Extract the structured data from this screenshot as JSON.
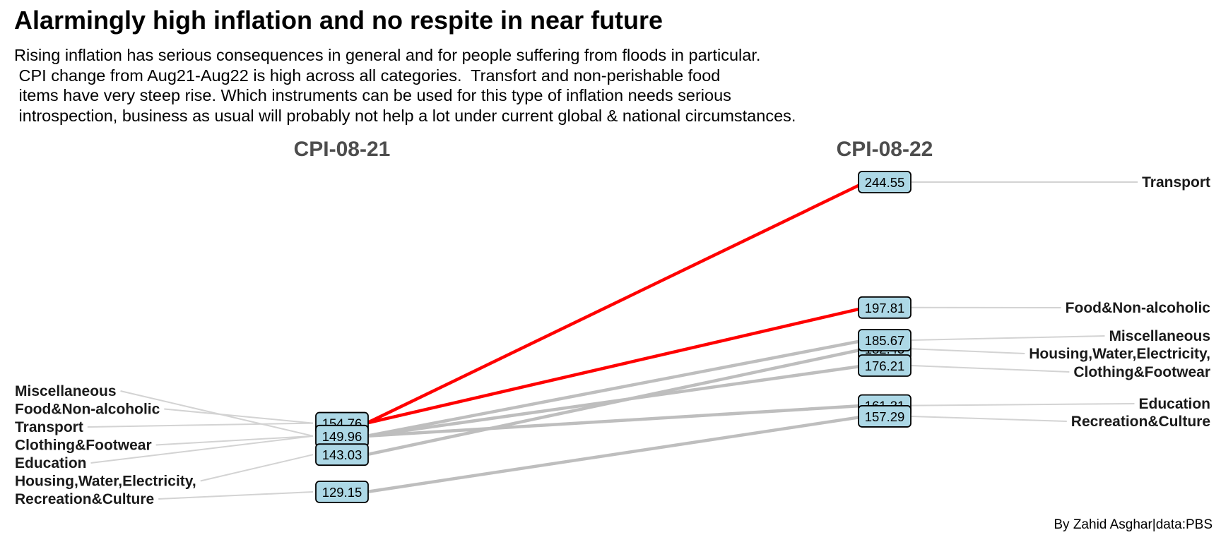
{
  "chart_data": {
    "type": "line",
    "title": "Alarmingly high inflation and no respite in near future",
    "subtitle_lines": [
      "Rising inflation has serious consequences in general and for people suffering from floods in particular.",
      " CPI change from Aug21-Aug22 is high across all categories.  Transfort and non-perishable food",
      " items have very steep rise. Which instruments can be used for this type of inflation needs serious",
      " introspection, business as usual will probably not help a lot under current global & national circumstances."
    ],
    "caption": "By Zahid Asghar|data:PBS",
    "x": [
      "CPI-08-21",
      "CPI-08-22"
    ],
    "ylim": [
      125,
      250
    ],
    "grid": false,
    "highlight_color": "#ff0000",
    "base_color": "#bebebe",
    "label_fill": "#add8e6",
    "left_label_order": [
      "Miscellaneous",
      "Food&Non-alcoholic",
      "Transport",
      "Clothing&Footwear",
      "Education",
      "Housing,Water,Electricity,",
      "Recreation&Culture"
    ],
    "right_label_order": [
      "Transport",
      "Food&Non-alcoholic",
      "Miscellaneous",
      "Housing,Water,Electricity,",
      "Clothing&Footwear",
      "Education",
      "Recreation&Culture"
    ],
    "series": [
      {
        "name": "Transport",
        "values": [
          154.76,
          244.55
        ],
        "highlight": true
      },
      {
        "name": "Food&Non-alcoholic",
        "values": [
          154.76,
          197.81
        ],
        "highlight": true
      },
      {
        "name": "Miscellaneous",
        "values": [
          149.96,
          185.67
        ],
        "highlight": false
      },
      {
        "name": "Housing,Water,Electricity,",
        "values": [
          143.03,
          182.45
        ],
        "highlight": false
      },
      {
        "name": "Clothing&Footwear",
        "values": [
          149.96,
          176.21
        ],
        "highlight": false
      },
      {
        "name": "Education",
        "values": [
          149.96,
          161.31
        ],
        "highlight": false
      },
      {
        "name": "Recreation&Culture",
        "values": [
          129.15,
          157.29
        ],
        "highlight": false
      }
    ],
    "value_labels": [
      {
        "column": 0,
        "value": 154.76,
        "text": "154.76"
      },
      {
        "column": 0,
        "value": 149.96,
        "text": "149.96"
      },
      {
        "column": 0,
        "value": 143.03,
        "text": "143.03"
      },
      {
        "column": 0,
        "value": 129.15,
        "text": "129.15"
      },
      {
        "column": 1,
        "value": 244.55,
        "text": "244.55"
      },
      {
        "column": 1,
        "value": 197.81,
        "text": "197.81"
      },
      {
        "column": 1,
        "value": 182.45,
        "text": "182.45"
      },
      {
        "column": 1,
        "value": 176.21,
        "text": "176.21"
      },
      {
        "column": 1,
        "value": 185.67,
        "text": "185.67"
      },
      {
        "column": 1,
        "value": 161.31,
        "text": "161.31"
      },
      {
        "column": 1,
        "value": 157.29,
        "text": "157.29"
      }
    ]
  }
}
